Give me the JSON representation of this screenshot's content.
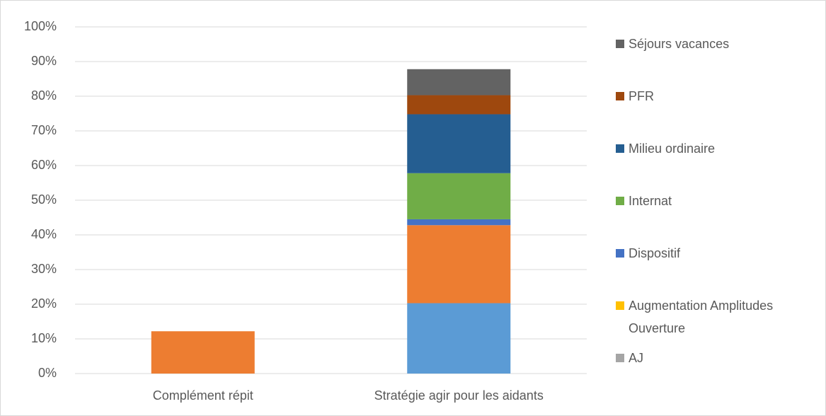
{
  "chart_data": {
    "type": "stacked_bar",
    "categories": [
      "Complément répit",
      "Stratégie agir pour les aidants"
    ],
    "series": [
      {
        "color": "#5b9bd5",
        "values": [
          0,
          20.3
        ]
      },
      {
        "color": "#ed7d31",
        "values": [
          12.2,
          22.5
        ]
      },
      {
        "name": "AJ",
        "color": "#a5a5a5",
        "values": [
          0,
          0
        ]
      },
      {
        "name": "Augmentation Amplitudes Ouverture",
        "color": "#ffc000",
        "values": [
          0,
          0
        ]
      },
      {
        "name": "Dispositif",
        "color": "#4472c4",
        "values": [
          0,
          1.7
        ]
      },
      {
        "name": "Internat",
        "color": "#70ad47",
        "values": [
          0,
          13.3
        ]
      },
      {
        "name": "Milieu ordinaire",
        "color": "#255e91",
        "values": [
          0,
          17
        ]
      },
      {
        "name": "PFR",
        "color": "#9e480e",
        "values": [
          0,
          5.5
        ]
      },
      {
        "name": "Séjours vacances",
        "color": "#636363",
        "values": [
          0,
          7.5
        ]
      }
    ],
    "ylim": [
      0,
      100
    ],
    "yticks": [
      {
        "value": 0,
        "label": "0%"
      },
      {
        "value": 10,
        "label": "10%"
      },
      {
        "value": 20,
        "label": "20%"
      },
      {
        "value": 30,
        "label": "30%"
      },
      {
        "value": 40,
        "label": "40%"
      },
      {
        "value": 50,
        "label": "50%"
      },
      {
        "value": 60,
        "label": "60%"
      },
      {
        "value": 70,
        "label": "70%"
      },
      {
        "value": 80,
        "label": "80%"
      },
      {
        "value": 90,
        "label": "90%"
      },
      {
        "value": 100,
        "label": "100%"
      }
    ],
    "grid": true,
    "legend": "right"
  }
}
